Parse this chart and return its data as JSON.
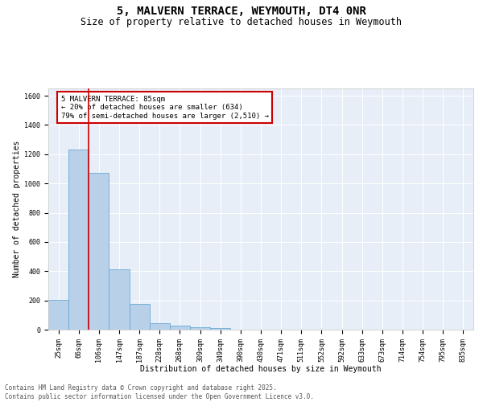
{
  "title": "5, MALVERN TERRACE, WEYMOUTH, DT4 0NR",
  "subtitle": "Size of property relative to detached houses in Weymouth",
  "xlabel": "Distribution of detached houses by size in Weymouth",
  "ylabel": "Number of detached properties",
  "categories": [
    "25sqm",
    "66sqm",
    "106sqm",
    "147sqm",
    "187sqm",
    "228sqm",
    "268sqm",
    "309sqm",
    "349sqm",
    "390sqm",
    "430sqm",
    "471sqm",
    "511sqm",
    "552sqm",
    "592sqm",
    "633sqm",
    "673sqm",
    "714sqm",
    "754sqm",
    "795sqm",
    "835sqm"
  ],
  "values": [
    205,
    1230,
    1075,
    415,
    175,
    42,
    25,
    15,
    10,
    0,
    0,
    0,
    0,
    0,
    0,
    0,
    0,
    0,
    0,
    0,
    0
  ],
  "bar_color": "#b8d0e8",
  "bar_edge_color": "#6aaad4",
  "vline_x": 1.5,
  "vline_color": "#cc0000",
  "annotation_text": "5 MALVERN TERRACE: 85sqm\n← 20% of detached houses are smaller (634)\n79% of semi-detached houses are larger (2,510) →",
  "annotation_box_color": "#cc0000",
  "ylim": [
    0,
    1650
  ],
  "yticks": [
    0,
    200,
    400,
    600,
    800,
    1000,
    1200,
    1400,
    1600
  ],
  "bg_color": "#e8eef8",
  "footer_line1": "Contains HM Land Registry data © Crown copyright and database right 2025.",
  "footer_line2": "Contains public sector information licensed under the Open Government Licence v3.0.",
  "title_fontsize": 10,
  "subtitle_fontsize": 8.5,
  "annotation_fontsize": 6.5,
  "ylabel_fontsize": 7,
  "xlabel_fontsize": 7,
  "tick_fontsize": 6,
  "footer_fontsize": 5.5
}
